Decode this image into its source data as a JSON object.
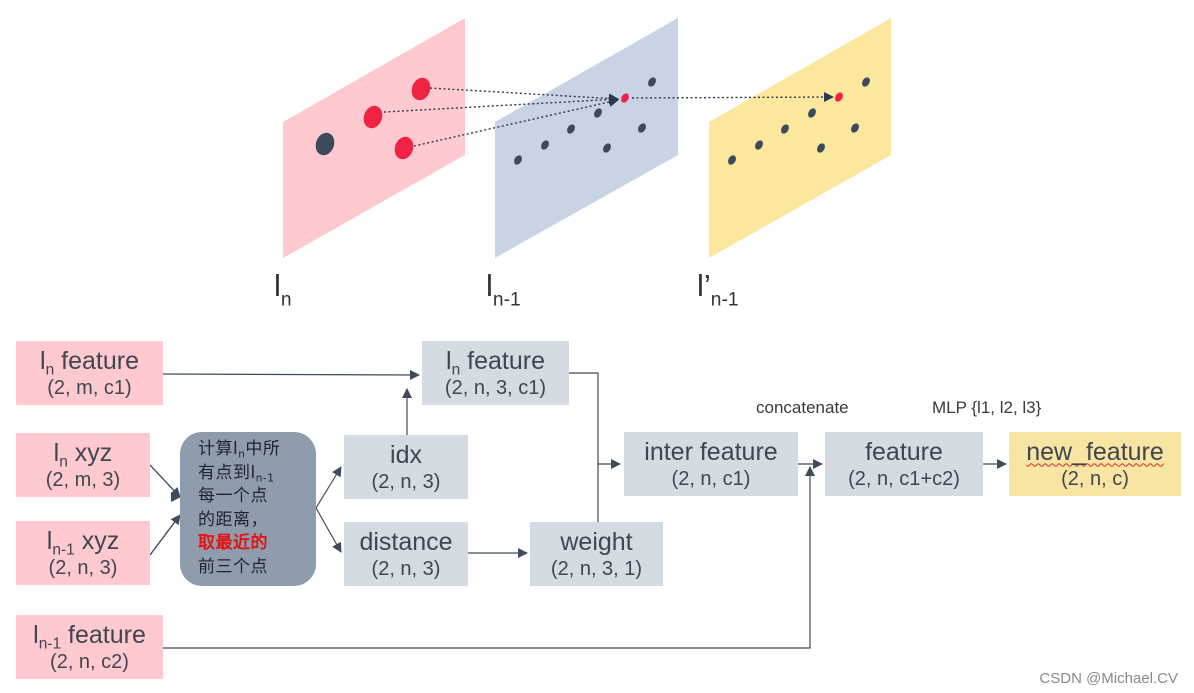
{
  "planes": {
    "ln": {
      "label_base": "l",
      "label_sub": "n"
    },
    "ln1": {
      "label_base": "l",
      "label_sub": "n-1"
    },
    "lp": {
      "label_base": "l’",
      "label_sub": "n-1"
    }
  },
  "boxes": {
    "ln_feature_in": {
      "base": "l",
      "sub": "n",
      "rest": " feature",
      "shape": "(2, m, c1)"
    },
    "ln_xyz": {
      "base": "l",
      "sub": "n",
      "rest": " xyz",
      "shape": "(2, m, 3)"
    },
    "ln1_xyz": {
      "base": "l",
      "sub": "n-1",
      "rest": " xyz",
      "shape": "(2, n, 3)"
    },
    "ln1_feature": {
      "base": "l",
      "sub": "n-1",
      "rest": " feature",
      "shape": "(2, n, c2)"
    },
    "ln_feature_grouped": {
      "base": "l",
      "sub": "n",
      "rest": " feature",
      "shape": "(2, n, 3, c1)"
    },
    "idx": {
      "title": "idx",
      "shape": "(2, n, 3)"
    },
    "distance": {
      "title": "distance",
      "shape": "(2, n, 3)"
    },
    "weight": {
      "title": "weight",
      "shape": "(2, n, 3, 1)"
    },
    "inter_feature": {
      "title": "inter feature",
      "shape": "(2, n, c1)"
    },
    "feature": {
      "title": "feature",
      "shape": "(2, n, c1+c2)"
    },
    "new_feature": {
      "title": "new_feature",
      "shape": "(2, n, c)"
    }
  },
  "calc": {
    "line1_a": "计算l",
    "line1_sub": "n",
    "line1_b": "中所",
    "line2_a": "有点到l",
    "line2_sub": "n-1",
    "line3": "每一个点",
    "line4": "的距离，",
    "line5": "取最近的",
    "line6": "前三个点"
  },
  "ops": {
    "concatenate": "concatenate",
    "mlp": "MLP {l1, l2, l3}"
  },
  "colors": {
    "pink_plane": "#ffc9d0",
    "blue_plane": "#c8d3e4",
    "yellow_plane": "#fbe79d",
    "red_point": "#ef2344",
    "dark_point": "#3c4a5c",
    "box_pink": "#ffc9d0",
    "box_gray": "#d5dbe3",
    "box_yellow": "#f9e5a3",
    "calc_bg": "#8f9cac",
    "highlight_text": "#e01515"
  },
  "watermark": "CSDN @Michael.CV"
}
